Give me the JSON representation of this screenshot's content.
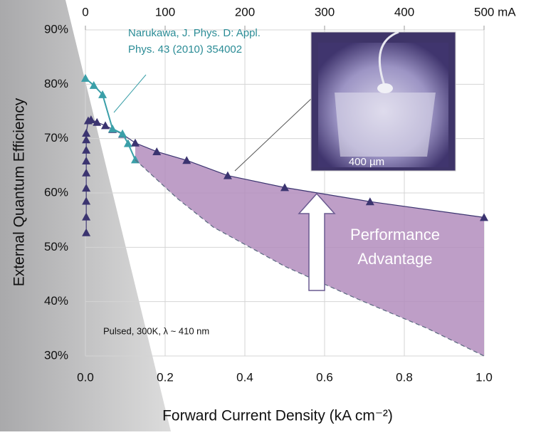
{
  "chart_data": {
    "type": "scatter",
    "x_label": "Forward Current Density (kA cm⁻²)",
    "y_label": "External Quantum Efficiency",
    "xlim": [
      0,
      1
    ],
    "xticks": [
      {
        "value": 0,
        "label": "0.0"
      },
      0.2,
      0.4,
      0.6,
      0.8,
      {
        "value": 1,
        "label": "1.0"
      }
    ],
    "x2lim": [
      0,
      500
    ],
    "x2ticks": [
      0,
      100,
      200,
      300,
      400,
      {
        "value": 500,
        "label": "500 mA"
      }
    ],
    "ylim": [
      30,
      90
    ],
    "yticks": [
      {
        "value": 30,
        "label": "30%"
      },
      {
        "value": 40,
        "label": "40%"
      },
      {
        "value": 50,
        "label": "50%"
      },
      {
        "value": 60,
        "label": "60%"
      },
      {
        "value": 70,
        "label": "70%"
      },
      {
        "value": 80,
        "label": "80%"
      },
      {
        "value": 90,
        "label": "90%"
      }
    ],
    "grid": true,
    "series": [
      {
        "color": "#3b3470",
        "x": [
          0.002,
          0.002,
          0.002,
          0.002,
          0.002,
          0.002,
          0.002,
          0.002,
          0.002,
          0.007,
          0.014,
          0.029,
          0.05,
          0.068,
          0.093,
          0.125,
          0.179,
          0.254,
          0.357,
          0.5,
          0.714,
          1.0
        ],
        "values": [
          52.7,
          55.6,
          58.5,
          60.9,
          63.7,
          65.9,
          67.9,
          69.8,
          71.0,
          73.3,
          73.5,
          73.0,
          72.4,
          71.7,
          70.8,
          69.2,
          67.6,
          66.0,
          63.2,
          61.0,
          58.4,
          55.5
        ]
      },
      {
        "color": "#3a9fa8",
        "x": [
          0,
          0.021,
          0.043,
          0.068,
          0.093,
          0.107,
          0.125
        ],
        "values": [
          81.1,
          79.8,
          78.1,
          71.8,
          70.9,
          69.1,
          66.1
        ]
      },
      {
        "color": "#5a6a80",
        "x": [
          0.125,
          0.232,
          0.321,
          0.5,
          0.679,
          0.857,
          1.0
        ],
        "values": [
          66.1,
          58.9,
          53.7,
          46.5,
          40.6,
          35.1,
          30
        ]
      }
    ],
    "area_color": "#b38dbd",
    "annotations": {
      "reference": [
        "Narukawa, J. Phys. D: Appl.",
        "Phys. 43 (2010) 354002"
      ],
      "inset_scale": "400 µm",
      "advantage": [
        "Performance",
        "Advantage"
      ],
      "conditions": "Pulsed, 300K, λ ~ 410 nm"
    }
  }
}
